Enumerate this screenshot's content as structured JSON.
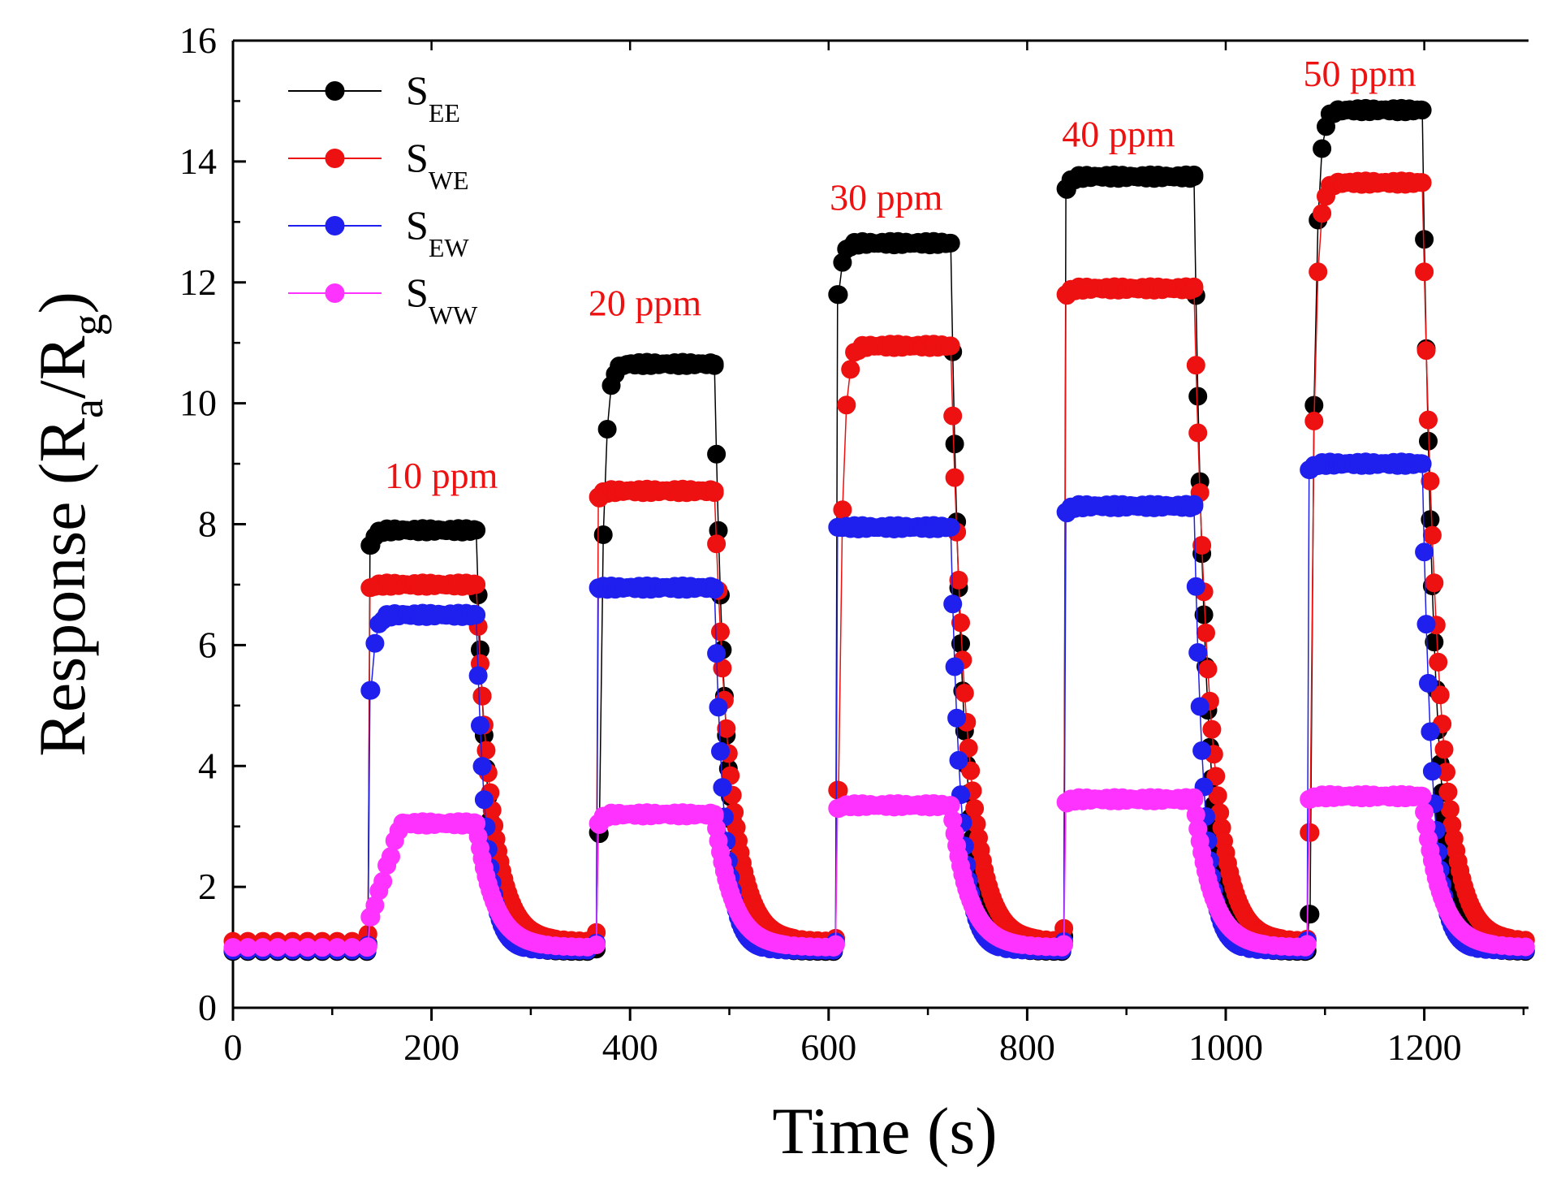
{
  "chart_data": {
    "type": "scatter",
    "title": "",
    "xlabel": "Time (s)",
    "ylabel": "Response (R",
    "ylabel_sub_a": "a",
    "ylabel_mid": "/R",
    "ylabel_sub_g": "g",
    "ylabel_close": ")",
    "xlim": [
      0,
      1305
    ],
    "ylim": [
      0,
      16
    ],
    "xticks": [
      0,
      200,
      400,
      600,
      800,
      1000,
      1200
    ],
    "yticks": [
      0,
      2,
      4,
      6,
      8,
      10,
      12,
      14,
      16
    ],
    "legend_position": "top-left",
    "pulses": [
      {
        "label": "10 ppm",
        "on": 137,
        "off": 243,
        "label_x": 210,
        "label_y": 8.6
      },
      {
        "label": "20 ppm",
        "on": 367,
        "off": 483,
        "label_x": 415,
        "label_y": 11.45
      },
      {
        "label": "30 ppm",
        "on": 608,
        "off": 721,
        "label_x": 658,
        "label_y": 13.2
      },
      {
        "label": "40 ppm",
        "on": 838,
        "off": 966,
        "label_x": 892,
        "label_y": 14.25
      },
      {
        "label": "50 ppm",
        "on": 1083,
        "off": 1196,
        "label_x": 1135,
        "label_y": 15.25
      }
    ],
    "series": [
      {
        "name": "S",
        "sub": "EE",
        "color": "#000000",
        "baseline": 0.93,
        "plateaus": [
          7.9,
          10.65,
          12.65,
          13.75,
          14.85
        ],
        "decay_tau": 12,
        "rise_start": [
          7.65,
          2.9,
          11.8,
          13.55,
          1.55
        ]
      },
      {
        "name": "S",
        "sub": "WE",
        "color": "#ee1111",
        "baseline": 1.1,
        "plateaus": [
          7.0,
          8.55,
          10.95,
          11.9,
          13.65
        ],
        "decay_tau": 16,
        "rise_start": [
          6.95,
          8.45,
          3.6,
          11.8,
          2.9
        ]
      },
      {
        "name": "S",
        "sub": "EW",
        "color": "#1f1fee",
        "baseline": 0.95,
        "plateaus": [
          6.5,
          6.95,
          7.95,
          8.3,
          9.0
        ],
        "decay_tau": 10,
        "rise_start": [
          5.25,
          6.95,
          7.95,
          8.2,
          8.9
        ]
      },
      {
        "name": "S",
        "sub": "WW",
        "color": "#ff33ff",
        "baseline": 1.0,
        "plateaus": [
          3.05,
          3.2,
          3.35,
          3.45,
          3.5
        ],
        "decay_tau": 18,
        "rise_start": [
          1.5,
          3.05,
          3.3,
          3.4,
          3.45
        ]
      }
    ]
  }
}
